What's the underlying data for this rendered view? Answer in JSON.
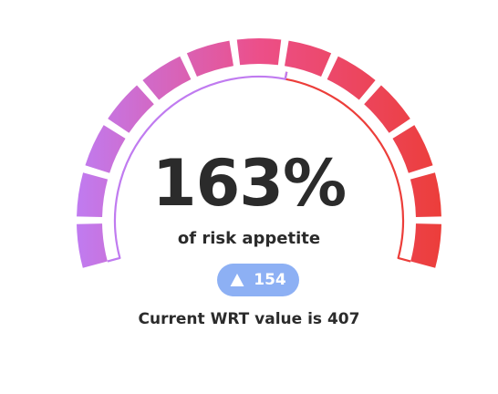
{
  "gauge": {
    "value_label": "163%",
    "caption": "of risk appetite",
    "segments": 13,
    "progress_fraction": 0.55,
    "color_start": "#c07bf0",
    "color_mid": "#ec4f89",
    "color_end": "#ec3e3a"
  },
  "delta": {
    "direction_icon": "triangle-up-icon",
    "value": "154",
    "color": "#8db0f4"
  },
  "footer": {
    "text": "Current WRT value is 407"
  }
}
